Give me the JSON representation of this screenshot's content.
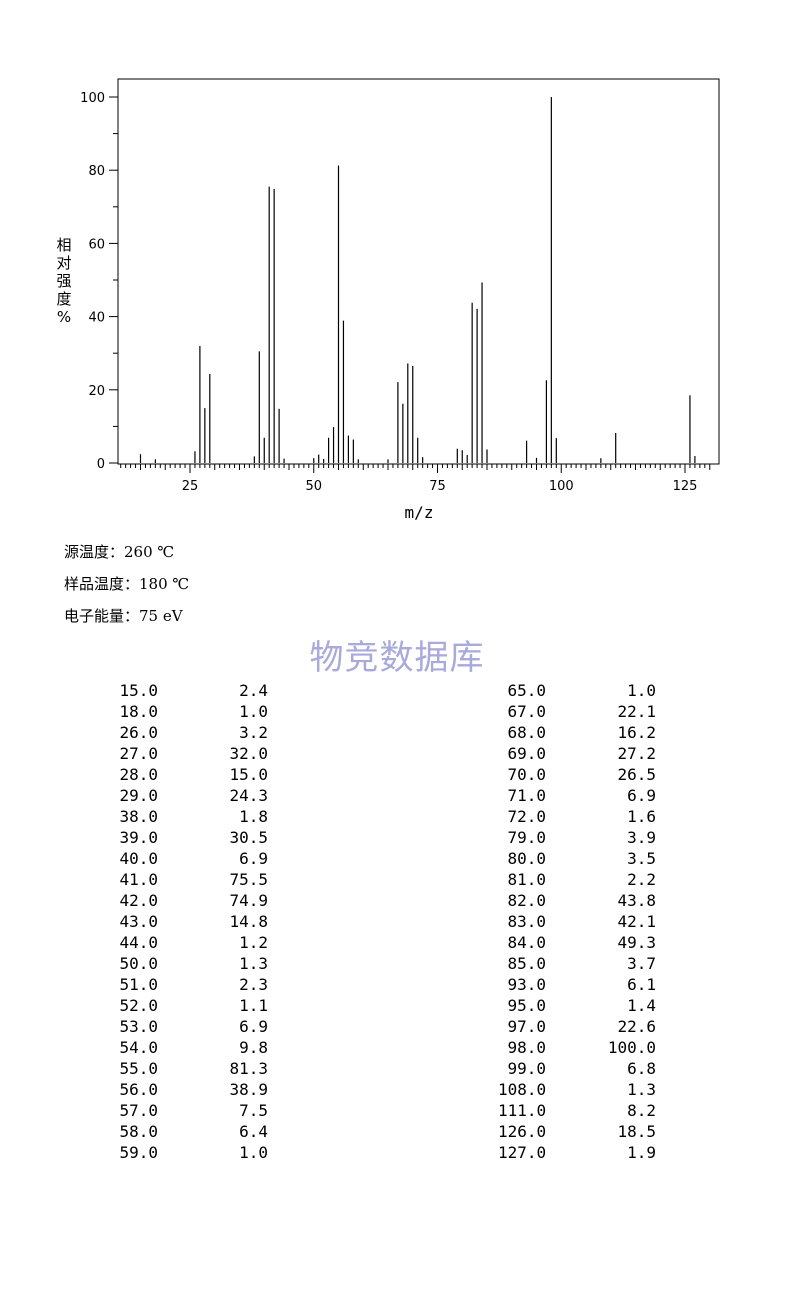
{
  "chart_data": {
    "type": "bar",
    "xlabel": "m/z",
    "ylabel": "相对强度%",
    "xlim": [
      10,
      131
    ],
    "ylim": [
      0,
      105
    ],
    "x_ticks": [
      25,
      50,
      75,
      100,
      125
    ],
    "y_ticks": [
      0,
      20,
      40,
      60,
      80,
      100
    ],
    "grid": false,
    "peaks": [
      [
        15.0,
        2.4
      ],
      [
        18.0,
        1.0
      ],
      [
        26.0,
        3.2
      ],
      [
        27.0,
        32.0
      ],
      [
        28.0,
        15.0
      ],
      [
        29.0,
        24.3
      ],
      [
        38.0,
        1.8
      ],
      [
        39.0,
        30.5
      ],
      [
        40.0,
        6.9
      ],
      [
        41.0,
        75.5
      ],
      [
        42.0,
        74.9
      ],
      [
        43.0,
        14.8
      ],
      [
        44.0,
        1.2
      ],
      [
        50.0,
        1.3
      ],
      [
        51.0,
        2.3
      ],
      [
        52.0,
        1.1
      ],
      [
        53.0,
        6.9
      ],
      [
        54.0,
        9.8
      ],
      [
        55.0,
        81.3
      ],
      [
        56.0,
        38.9
      ],
      [
        57.0,
        7.5
      ],
      [
        58.0,
        6.4
      ],
      [
        59.0,
        1.0
      ],
      [
        65.0,
        1.0
      ],
      [
        67.0,
        22.1
      ],
      [
        68.0,
        16.2
      ],
      [
        69.0,
        27.2
      ],
      [
        70.0,
        26.5
      ],
      [
        71.0,
        6.9
      ],
      [
        72.0,
        1.6
      ],
      [
        79.0,
        3.9
      ],
      [
        80.0,
        3.5
      ],
      [
        81.0,
        2.2
      ],
      [
        82.0,
        43.8
      ],
      [
        83.0,
        42.1
      ],
      [
        84.0,
        49.3
      ],
      [
        85.0,
        3.7
      ],
      [
        93.0,
        6.1
      ],
      [
        95.0,
        1.4
      ],
      [
        97.0,
        22.6
      ],
      [
        98.0,
        100.0
      ],
      [
        99.0,
        6.8
      ],
      [
        108.0,
        1.3
      ],
      [
        111.0,
        8.2
      ],
      [
        126.0,
        18.5
      ],
      [
        127.0,
        1.9
      ]
    ]
  },
  "info": {
    "source_temp": "源温度：260 ℃",
    "sample_temp": "样品温度：180 ℃",
    "electron_energy": "电子能量：75 eV"
  },
  "watermark": "物竞数据库",
  "table_left": [
    [
      "15.0",
      "2.4"
    ],
    [
      "18.0",
      "1.0"
    ],
    [
      "26.0",
      "3.2"
    ],
    [
      "27.0",
      "32.0"
    ],
    [
      "28.0",
      "15.0"
    ],
    [
      "29.0",
      "24.3"
    ],
    [
      "38.0",
      "1.8"
    ],
    [
      "39.0",
      "30.5"
    ],
    [
      "40.0",
      "6.9"
    ],
    [
      "41.0",
      "75.5"
    ],
    [
      "42.0",
      "74.9"
    ],
    [
      "43.0",
      "14.8"
    ],
    [
      "44.0",
      "1.2"
    ],
    [
      "50.0",
      "1.3"
    ],
    [
      "51.0",
      "2.3"
    ],
    [
      "52.0",
      "1.1"
    ],
    [
      "53.0",
      "6.9"
    ],
    [
      "54.0",
      "9.8"
    ],
    [
      "55.0",
      "81.3"
    ],
    [
      "56.0",
      "38.9"
    ],
    [
      "57.0",
      "7.5"
    ],
    [
      "58.0",
      "6.4"
    ],
    [
      "59.0",
      "1.0"
    ]
  ],
  "table_right": [
    [
      "65.0",
      "1.0"
    ],
    [
      "67.0",
      "22.1"
    ],
    [
      "68.0",
      "16.2"
    ],
    [
      "69.0",
      "27.2"
    ],
    [
      "70.0",
      "26.5"
    ],
    [
      "71.0",
      "6.9"
    ],
    [
      "72.0",
      "1.6"
    ],
    [
      "79.0",
      "3.9"
    ],
    [
      "80.0",
      "3.5"
    ],
    [
      "81.0",
      "2.2"
    ],
    [
      "82.0",
      "43.8"
    ],
    [
      "83.0",
      "42.1"
    ],
    [
      "84.0",
      "49.3"
    ],
    [
      "85.0",
      "3.7"
    ],
    [
      "93.0",
      "6.1"
    ],
    [
      "95.0",
      "1.4"
    ],
    [
      "97.0",
      "22.6"
    ],
    [
      "98.0",
      "100.0"
    ],
    [
      "99.0",
      "6.8"
    ],
    [
      "108.0",
      "1.3"
    ],
    [
      "111.0",
      "8.2"
    ],
    [
      "126.0",
      "18.5"
    ],
    [
      "127.0",
      "1.9"
    ]
  ]
}
